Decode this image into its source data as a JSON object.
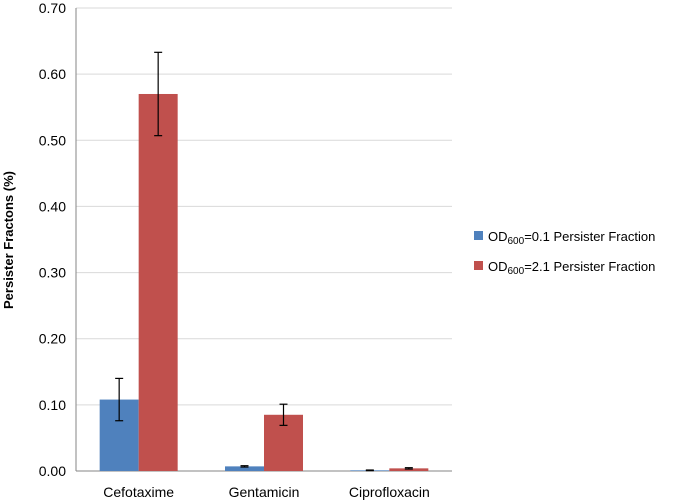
{
  "chart_data": {
    "type": "bar",
    "title": "",
    "xlabel": "",
    "ylabel": "Persister Fractons (%)",
    "ylim": [
      0,
      0.7
    ],
    "yticks": [
      "0.00",
      "0.10",
      "0.20",
      "0.30",
      "0.40",
      "0.50",
      "0.60",
      "0.70"
    ],
    "categories": [
      "Cefotaxime",
      "Gentamicin",
      "Ciprofloxacin"
    ],
    "grid": "horizontal",
    "legend_position": "right",
    "series": [
      {
        "name_parts": [
          "OD",
          "600",
          "=0.1 Persister Fraction"
        ],
        "color": "#4f81bd",
        "values": [
          0.108,
          0.007,
          0.001
        ],
        "errors": [
          0.032,
          0.001,
          0.0005
        ]
      },
      {
        "name_parts": [
          "OD",
          "600",
          "=2.1 Persister Fraction"
        ],
        "color": "#c0504d",
        "values": [
          0.57,
          0.085,
          0.004
        ],
        "errors": [
          0.063,
          0.016,
          0.001
        ]
      }
    ]
  }
}
